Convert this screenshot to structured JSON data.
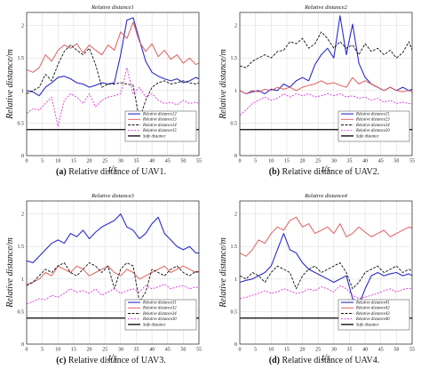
{
  "chart_data": [
    {
      "type": "line",
      "title": "Relative    distance1",
      "xlabel": "t/s",
      "ylabel": "Relative   distance/m",
      "xlim": [
        0,
        55
      ],
      "ylim": [
        0,
        2.2
      ],
      "xticks": [
        0,
        5,
        10,
        15,
        20,
        25,
        30,
        35,
        40,
        45,
        50,
        55
      ],
      "yticks": [
        0,
        0.5,
        1,
        1.5,
        2
      ],
      "grid": true,
      "legend_position": "bottom-right",
      "caption_label": "(a)",
      "caption_text": " Relative distance of UAV1.",
      "x": [
        0,
        2,
        4,
        6,
        8,
        10,
        12,
        14,
        16,
        18,
        20,
        22,
        24,
        26,
        28,
        30,
        32,
        34,
        36,
        38,
        40,
        42,
        44,
        46,
        48,
        50,
        52,
        54,
        55
      ],
      "series": [
        {
          "name": "Relative    distance12",
          "color": "#2b2bc8",
          "dash": "",
          "width": 1.1,
          "values": [
            1.0,
            0.98,
            0.92,
            1.05,
            1.12,
            1.2,
            1.22,
            1.18,
            1.12,
            1.1,
            1.05,
            1.08,
            1.12,
            1.1,
            1.12,
            1.55,
            2.08,
            2.12,
            1.78,
            1.45,
            1.28,
            1.22,
            1.18,
            1.15,
            1.18,
            1.12,
            1.15,
            1.2,
            1.18
          ]
        },
        {
          "name": "Relative    distance13",
          "color": "#e06060",
          "dash": "",
          "width": 1.0,
          "values": [
            1.32,
            1.28,
            1.35,
            1.55,
            1.45,
            1.62,
            1.7,
            1.65,
            1.72,
            1.58,
            1.7,
            1.62,
            1.55,
            1.7,
            1.62,
            1.9,
            1.8,
            2.05,
            1.75,
            1.6,
            1.72,
            1.52,
            1.62,
            1.48,
            1.55,
            1.42,
            1.5,
            1.4,
            1.42
          ]
        },
        {
          "name": "Relative    distance14",
          "color": "#111111",
          "dash": "3,1.5",
          "width": 0.9,
          "values": [
            0.95,
            1.0,
            1.05,
            1.25,
            1.15,
            1.4,
            1.6,
            1.7,
            1.62,
            1.55,
            1.65,
            1.4,
            1.05,
            1.1,
            1.1,
            1.12,
            1.1,
            1.08,
            0.55,
            0.85,
            1.05,
            1.12,
            1.15,
            1.1,
            1.12,
            1.15,
            1.12,
            1.1,
            1.12
          ]
        },
        {
          "name": "Relative    distance15",
          "color": "#d838d8",
          "dash": "2,1.5",
          "width": 0.9,
          "values": [
            0.65,
            0.72,
            0.7,
            0.8,
            0.9,
            0.45,
            0.85,
            0.95,
            0.9,
            0.8,
            0.95,
            0.75,
            0.85,
            0.9,
            0.92,
            0.95,
            1.35,
            0.95,
            1.05,
            0.9,
            0.95,
            0.85,
            0.8,
            0.82,
            0.78,
            0.85,
            0.8,
            0.82,
            0.8
          ]
        },
        {
          "name": "Safe    distance",
          "color": "#000000",
          "dash": "",
          "width": 1.3,
          "values": [
            0.4,
            0.4,
            0.4,
            0.4,
            0.4,
            0.4,
            0.4,
            0.4,
            0.4,
            0.4,
            0.4,
            0.4,
            0.4,
            0.4,
            0.4,
            0.4,
            0.4,
            0.4,
            0.4,
            0.4,
            0.4,
            0.4,
            0.4,
            0.4,
            0.4,
            0.4,
            0.4,
            0.4,
            0.4
          ]
        }
      ]
    },
    {
      "type": "line",
      "title": "Relative    distance2",
      "xlabel": "t/s",
      "ylabel": "Relative   distance/m",
      "xlim": [
        0,
        55
      ],
      "ylim": [
        0,
        2.2
      ],
      "xticks": [
        0,
        5,
        10,
        15,
        20,
        25,
        30,
        35,
        40,
        45,
        50,
        55
      ],
      "yticks": [
        0,
        0.5,
        1,
        1.5,
        2
      ],
      "grid": true,
      "legend_position": "bottom-right",
      "caption_label": "(b)",
      "caption_text": " Relative distance of UAV2.",
      "x": [
        0,
        2,
        4,
        6,
        8,
        10,
        12,
        14,
        16,
        18,
        20,
        22,
        24,
        26,
        28,
        30,
        32,
        34,
        36,
        38,
        40,
        42,
        44,
        46,
        48,
        50,
        52,
        54,
        55
      ],
      "series": [
        {
          "name": "Relative    distance21",
          "color": "#2b2bc8",
          "dash": "",
          "width": 1.1,
          "values": [
            1.0,
            0.95,
            0.98,
            1.0,
            0.95,
            1.02,
            1.0,
            1.1,
            1.05,
            1.15,
            1.2,
            1.15,
            1.4,
            1.55,
            1.65,
            1.5,
            2.15,
            1.55,
            2.02,
            1.42,
            1.2,
            1.1,
            1.05,
            1.0,
            1.05,
            1.0,
            1.05,
            1.0,
            1.02
          ]
        },
        {
          "name": "Relative    distance23",
          "color": "#e06060",
          "dash": "",
          "width": 1.0,
          "values": [
            1.0,
            0.95,
            1.0,
            0.98,
            1.02,
            1.0,
            1.05,
            1.02,
            1.05,
            1.0,
            1.05,
            1.08,
            1.1,
            1.15,
            1.1,
            1.12,
            1.08,
            1.05,
            1.2,
            1.1,
            1.15,
            1.1,
            1.05,
            1.0,
            1.05,
            1.0,
            0.98,
            1.0,
            0.98
          ]
        },
        {
          "name": "Relative    distance24",
          "color": "#111111",
          "dash": "3,1.5",
          "width": 0.9,
          "values": [
            1.38,
            1.35,
            1.45,
            1.5,
            1.55,
            1.5,
            1.6,
            1.62,
            1.75,
            1.72,
            1.8,
            1.65,
            1.72,
            1.9,
            1.8,
            1.65,
            1.75,
            1.65,
            1.7,
            1.55,
            1.72,
            1.6,
            1.65,
            1.55,
            1.62,
            1.5,
            1.58,
            1.75,
            1.62
          ]
        },
        {
          "name": "Relative    distance20",
          "color": "#d838d8",
          "dash": "2,1.5",
          "width": 0.9,
          "values": [
            0.62,
            0.7,
            0.8,
            0.85,
            0.9,
            0.85,
            0.88,
            0.95,
            0.9,
            0.95,
            0.92,
            0.95,
            0.9,
            0.92,
            0.95,
            0.92,
            0.95,
            0.9,
            0.92,
            0.88,
            0.9,
            0.85,
            0.88,
            0.82,
            0.85,
            0.8,
            0.82,
            0.8,
            0.8
          ]
        },
        {
          "name": "Safe    distance",
          "color": "#000000",
          "dash": "",
          "width": 1.3,
          "values": [
            0.4,
            0.4,
            0.4,
            0.4,
            0.4,
            0.4,
            0.4,
            0.4,
            0.4,
            0.4,
            0.4,
            0.4,
            0.4,
            0.4,
            0.4,
            0.4,
            0.4,
            0.4,
            0.4,
            0.4,
            0.4,
            0.4,
            0.4,
            0.4,
            0.4,
            0.4,
            0.4,
            0.4,
            0.4
          ]
        }
      ]
    },
    {
      "type": "line",
      "title": "Relative    distance3",
      "xlabel": "t/s",
      "ylabel": "Relative   distance/m",
      "xlim": [
        0,
        55
      ],
      "ylim": [
        0,
        2.2
      ],
      "xticks": [
        0,
        5,
        10,
        15,
        20,
        25,
        30,
        35,
        40,
        45,
        50,
        55
      ],
      "yticks": [
        0,
        0.5,
        1,
        1.5,
        2
      ],
      "grid": true,
      "legend_position": "bottom-right",
      "caption_label": "(c)",
      "caption_text": " Relative distance of UAV3.",
      "x": [
        0,
        2,
        4,
        6,
        8,
        10,
        12,
        14,
        16,
        18,
        20,
        22,
        24,
        26,
        28,
        30,
        32,
        34,
        36,
        38,
        40,
        42,
        44,
        46,
        48,
        50,
        52,
        54,
        55
      ],
      "series": [
        {
          "name": "Relative    distance31",
          "color": "#2b2bc8",
          "dash": "",
          "width": 1.1,
          "values": [
            1.28,
            1.25,
            1.35,
            1.45,
            1.55,
            1.6,
            1.55,
            1.7,
            1.65,
            1.75,
            1.62,
            1.72,
            1.8,
            1.85,
            1.9,
            2.0,
            1.8,
            1.75,
            1.62,
            1.7,
            1.85,
            1.95,
            1.7,
            1.6,
            1.5,
            1.45,
            1.5,
            1.4,
            1.4
          ]
        },
        {
          "name": "Relative    distance32",
          "color": "#e06060",
          "dash": "",
          "width": 1.0,
          "values": [
            0.92,
            0.95,
            1.0,
            1.1,
            1.05,
            1.2,
            1.15,
            1.1,
            1.2,
            1.15,
            1.05,
            1.1,
            1.15,
            1.2,
            1.1,
            1.05,
            1.15,
            1.1,
            1.0,
            1.05,
            1.1,
            1.15,
            1.2,
            1.1,
            1.15,
            1.2,
            1.15,
            1.1,
            1.12
          ]
        },
        {
          "name": "Relative    distance34",
          "color": "#111111",
          "dash": "3,1.5",
          "width": 0.9,
          "values": [
            0.9,
            0.95,
            1.05,
            1.15,
            1.1,
            1.2,
            1.25,
            1.1,
            1.05,
            1.15,
            1.25,
            1.2,
            1.1,
            1.2,
            0.85,
            1.15,
            1.25,
            1.2,
            0.65,
            0.8,
            1.15,
            1.1,
            1.05,
            1.15,
            1.2,
            1.1,
            1.05,
            1.12,
            1.1
          ]
        },
        {
          "name": "Relative    distance30",
          "color": "#d838d8",
          "dash": "2,1.5",
          "width": 0.9,
          "values": [
            0.62,
            0.65,
            0.7,
            0.68,
            0.75,
            0.72,
            0.78,
            0.85,
            0.8,
            0.82,
            0.78,
            0.85,
            0.75,
            0.8,
            0.85,
            0.78,
            0.82,
            0.85,
            0.8,
            0.9,
            0.85,
            0.88,
            0.92,
            0.85,
            0.88,
            0.9,
            0.85,
            0.88,
            0.86
          ]
        },
        {
          "name": "Safe    distance",
          "color": "#000000",
          "dash": "",
          "width": 1.3,
          "values": [
            0.4,
            0.4,
            0.4,
            0.4,
            0.4,
            0.4,
            0.4,
            0.4,
            0.4,
            0.4,
            0.4,
            0.4,
            0.4,
            0.4,
            0.4,
            0.4,
            0.4,
            0.4,
            0.4,
            0.4,
            0.4,
            0.4,
            0.4,
            0.4,
            0.4,
            0.4,
            0.4,
            0.4,
            0.4
          ]
        }
      ]
    },
    {
      "type": "line",
      "title": "Relative    distance4",
      "xlabel": "t/s",
      "ylabel": "Relative   distance/m",
      "xlim": [
        0,
        55
      ],
      "ylim": [
        0,
        2.2
      ],
      "xticks": [
        0,
        5,
        10,
        15,
        20,
        25,
        30,
        35,
        40,
        45,
        50,
        55
      ],
      "yticks": [
        0,
        0.5,
        1,
        1.5,
        2
      ],
      "grid": true,
      "legend_position": "bottom-right",
      "caption_label": "(d)",
      "caption_text": " Relative distance of UAV4.",
      "x": [
        0,
        2,
        4,
        6,
        8,
        10,
        12,
        14,
        16,
        18,
        20,
        22,
        24,
        26,
        28,
        30,
        32,
        34,
        36,
        38,
        40,
        42,
        44,
        46,
        48,
        50,
        52,
        54,
        55
      ],
      "series": [
        {
          "name": "Relative    distance41",
          "color": "#2b2bc8",
          "dash": "",
          "width": 1.1,
          "values": [
            0.95,
            0.98,
            1.0,
            1.05,
            1.1,
            1.2,
            1.45,
            1.7,
            1.45,
            1.4,
            1.25,
            1.15,
            1.1,
            1.05,
            1.0,
            0.95,
            1.0,
            1.05,
            0.7,
            0.6,
            0.85,
            1.05,
            1.1,
            1.05,
            1.08,
            1.1,
            1.05,
            1.08,
            1.05
          ]
        },
        {
          "name": "Relative    distance42",
          "color": "#e06060",
          "dash": "",
          "width": 1.0,
          "values": [
            1.4,
            1.35,
            1.45,
            1.6,
            1.55,
            1.7,
            1.8,
            1.75,
            1.9,
            1.95,
            1.8,
            1.85,
            1.7,
            1.75,
            1.8,
            1.7,
            1.85,
            1.65,
            1.7,
            1.8,
            1.72,
            1.65,
            1.7,
            1.75,
            1.65,
            1.7,
            1.75,
            1.8,
            1.78
          ]
        },
        {
          "name": "Relative    distance43",
          "color": "#111111",
          "dash": "3,1.5",
          "width": 0.9,
          "values": [
            1.05,
            1.0,
            1.1,
            1.05,
            0.95,
            1.1,
            1.2,
            1.15,
            1.1,
            0.85,
            1.05,
            1.15,
            1.2,
            1.1,
            1.15,
            1.2,
            1.25,
            1.1,
            0.85,
            0.95,
            1.1,
            1.15,
            1.2,
            1.1,
            1.15,
            1.2,
            1.1,
            1.15,
            1.12
          ]
        },
        {
          "name": "Relative    distance40",
          "color": "#d838d8",
          "dash": "2,1.5",
          "width": 0.9,
          "values": [
            0.7,
            0.72,
            0.75,
            0.78,
            0.82,
            0.78,
            0.8,
            0.85,
            0.82,
            0.78,
            0.8,
            0.85,
            0.82,
            0.88,
            0.85,
            0.8,
            0.9,
            0.85,
            0.75,
            0.7,
            0.72,
            0.75,
            0.78,
            0.82,
            0.85,
            0.8,
            0.84,
            0.86,
            0.85
          ]
        },
        {
          "name": "Safe    distance",
          "color": "#000000",
          "dash": "",
          "width": 1.3,
          "values": [
            0.4,
            0.4,
            0.4,
            0.4,
            0.4,
            0.4,
            0.4,
            0.4,
            0.4,
            0.4,
            0.4,
            0.4,
            0.4,
            0.4,
            0.4,
            0.4,
            0.4,
            0.4,
            0.4,
            0.4,
            0.4,
            0.4,
            0.4,
            0.4,
            0.4,
            0.4,
            0.4,
            0.4,
            0.4
          ]
        }
      ]
    }
  ]
}
